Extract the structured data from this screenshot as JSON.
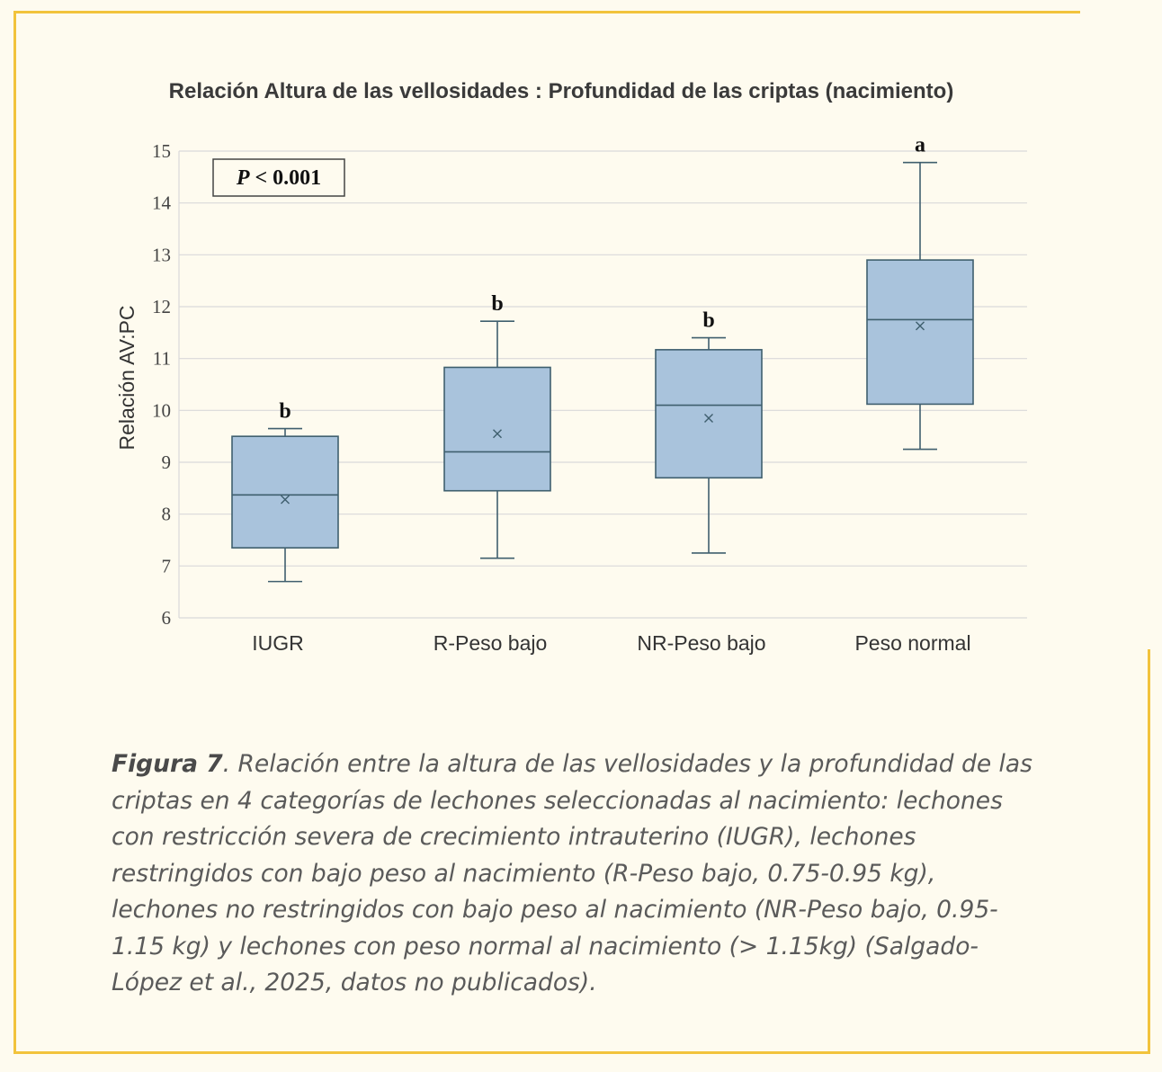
{
  "chart_data": {
    "type": "boxplot",
    "title": "Relación Altura de las vellosidades : Profundidad de las criptas (nacimiento)",
    "ylabel": "Relación AV:PC",
    "xlabel": "",
    "ylim": [
      6,
      15
    ],
    "yticks": [
      6,
      7,
      8,
      9,
      10,
      11,
      12,
      13,
      14,
      15
    ],
    "grid": true,
    "annotation": {
      "P": "P",
      "rest": " < 0.001"
    },
    "categories": [
      "IUGR",
      "R-Peso bajo",
      "NR-Peso bajo",
      "Peso normal"
    ],
    "boxes": [
      {
        "min": 6.7,
        "q1": 7.35,
        "median": 8.37,
        "q3": 9.5,
        "max": 9.65,
        "mean": 8.28,
        "sig": "b"
      },
      {
        "min": 7.15,
        "q1": 8.45,
        "median": 9.2,
        "q3": 10.83,
        "max": 11.72,
        "mean": 9.55,
        "sig": "b"
      },
      {
        "min": 7.25,
        "q1": 8.7,
        "median": 10.1,
        "q3": 11.17,
        "max": 11.4,
        "mean": 9.85,
        "sig": "b"
      },
      {
        "min": 9.25,
        "q1": 10.12,
        "median": 11.75,
        "q3": 12.9,
        "max": 14.78,
        "mean": 11.63,
        "sig": "a"
      }
    ],
    "colors": {
      "box_fill": "#a9c3dc",
      "box_stroke": "#3f5f6e",
      "grid": "#d9d9d9"
    }
  },
  "caption": {
    "figure_label": "Figura 7",
    "text": ". Relación entre la altura de las vellosidades y la profundidad de las criptas en 4 categorías de lechones seleccionadas al nacimiento: lechones con restricción severa de crecimiento intrauterino (IUGR), lechones restringidos con bajo peso al nacimiento (R-Peso bajo, 0.75-0.95 kg), lechones no restringidos con bajo peso al nacimiento (NR-Peso bajo, 0.95-1.15 kg) y lechones con peso normal al nacimiento (> 1.15kg) (Salgado-López et al., 2025, datos no publicados)."
  },
  "colors": {
    "background": "#fefbef",
    "frame": "#f2c33c"
  }
}
